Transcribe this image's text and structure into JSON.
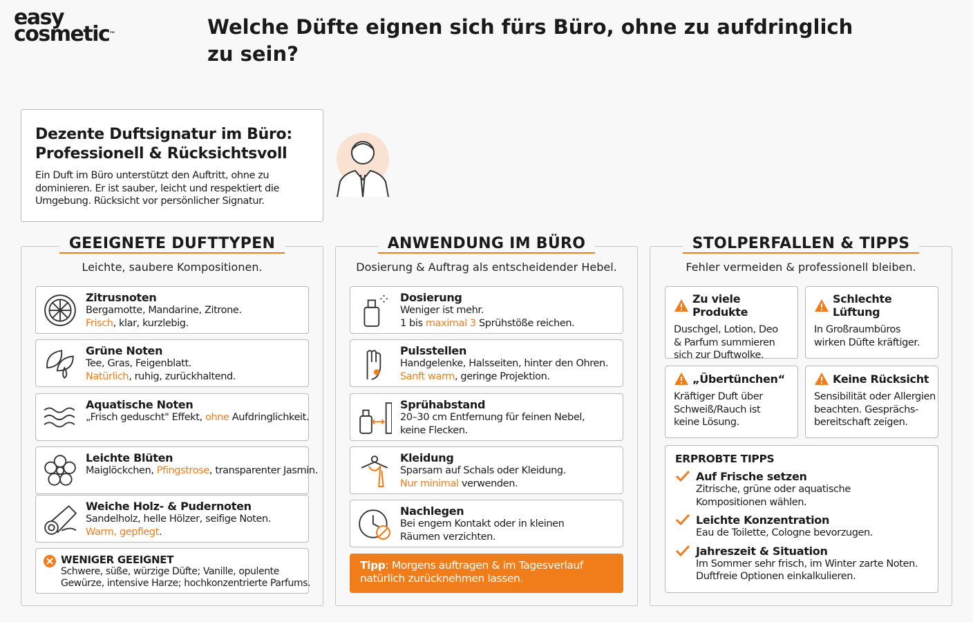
{
  "logo": {
    "line1": "easy",
    "line2": "cosmetic",
    "tm": "™"
  },
  "header": {
    "title": "Welche Düfte eignen sich fürs Büro, ohne zu aufdringlich zu sein?"
  },
  "intro": {
    "title": [
      "Dezente Duftsignatur im Büro:",
      "Professionell & Rücksichtsvoll"
    ],
    "lines": [
      "Ein Duft im Büro unterstützt den Auftritt, ohne zu",
      "dominieren. Er ist sauber, leicht und respektiert die",
      "Umgebung. Rücksicht vor persönlicher Signatur."
    ]
  },
  "columns": [
    {
      "title": "GEEIGNETE DUFTTYPEN",
      "subtitle": "Leichte, saubere Kompositionen.",
      "items": [
        {
          "title": "Zitrusnoten",
          "lines": [
            [
              "Bergamotte, Mandarine, Zitrone."
            ],
            [
              {
                "text": "Frisch",
                "hl": true
              },
              ", klar, kurzlebig."
            ]
          ]
        },
        {
          "title": "Grüne Noten",
          "lines": [
            [
              "Tee, Gras, Feigenblatt."
            ],
            [
              {
                "text": "Natürlich",
                "hl": true
              },
              ", ruhig, zurückhaltend."
            ]
          ]
        },
        {
          "title": "Aquatische Noten",
          "lines": [
            [
              "„Frisch geduscht\" Effekt, ",
              {
                "text": "ohne",
                "hl": true
              },
              " Aufdringlichkeit."
            ]
          ]
        },
        {
          "title": "Leichte Blüten",
          "lines": [
            [
              "Maiglöckchen, ",
              {
                "text": "Pfingstrose",
                "hl": true
              },
              ", transparenter Jasmin."
            ]
          ]
        },
        {
          "title": "Weiche Holz- & Pudernoten",
          "lines": [
            [
              "Sandelholz, helle Hölzer, seifige Noten."
            ],
            [
              {
                "text": "Warm, gepflegt",
                "hl": true
              },
              "."
            ]
          ]
        }
      ],
      "warning": {
        "title": "WENIGER GEEIGNET",
        "lines": [
          "Schwere, süße, würzige Düfte; Vanille, opulente",
          "Gewürze, intensive Harze; hochkonzentrierte Parfums."
        ]
      }
    },
    {
      "title": "ANWENDUNG IM BÜRO",
      "subtitle": "Dosierung & Auftrag als entscheidender Hebel.",
      "items": [
        {
          "title": "Dosierung",
          "lines": [
            [
              "Weniger ist mehr."
            ],
            [
              "1 bis ",
              {
                "text": "maximal 3",
                "hl": true
              },
              " Sprühstöße reichen."
            ]
          ]
        },
        {
          "title": "Pulsstellen",
          "lines": [
            [
              "Handgelenke, Halsseiten, hinter den Ohren."
            ],
            [
              {
                "text": "Sanft warm",
                "hl": true
              },
              ", geringe Projektion."
            ]
          ]
        },
        {
          "title": "Sprühabstand",
          "lines": [
            [
              "20–30 cm Entfernung für feinen Nebel,"
            ],
            [
              "keine Flecken."
            ]
          ]
        },
        {
          "title": "Kleidung",
          "lines": [
            [
              "Sparsam auf Schals oder Kleidung."
            ],
            [
              {
                "text": "Nur minimal",
                "hl": true
              },
              " verwenden."
            ]
          ]
        },
        {
          "title": "Nachlegen",
          "lines": [
            [
              "Bei engem Kontakt oder in kleinen"
            ],
            [
              "Räumen verzichten."
            ]
          ]
        }
      ],
      "tip": {
        "label": "Tipp",
        "lines": [
          ": Morgens auftragen & im Tagesverlauf",
          "natürlich zurücknehmen lassen."
        ]
      }
    },
    {
      "title": "STOLPERFALLEN & TIPPS",
      "subtitle": "Fehler vermeiden & professionell bleiben.",
      "cards": [
        {
          "title": "Zu viele Produkte",
          "lines": [
            "Duschgel, Lotion, Deo",
            "& Parfum summieren",
            "sich zur Duftwolke."
          ]
        },
        {
          "title": "Schlechte Lüftung",
          "lines": [
            "In Großraumbüros",
            "wirken Düfte kräftiger."
          ]
        },
        {
          "title": "„Übertünchen“",
          "lines": [
            "Kräftiger Duft über",
            "Schweiß/Rauch ist",
            "keine Lösung."
          ]
        },
        {
          "title": "Keine Rücksicht",
          "lines": [
            "Sensibilität oder Allergien",
            "beachten. Gesprächs-",
            "bereitschaft zeigen."
          ]
        }
      ],
      "tips": {
        "title": "ERPROBTE TIPPS",
        "items": [
          {
            "title": "Auf Frische setzen",
            "lines": [
              "Zitrische, grüne oder aquatische",
              "Kompositionen wählen."
            ]
          },
          {
            "title": "Leichte Konzentration",
            "lines": [
              "Eau de Toilette, Cologne bevorzugen."
            ]
          },
          {
            "title": "Jahreszeit & Situation",
            "lines": [
              "Im Sommer sehr frisch, im Winter zarte Noten.",
              "Duftfreie Optionen einkalkulieren."
            ]
          }
        ]
      }
    }
  ]
}
